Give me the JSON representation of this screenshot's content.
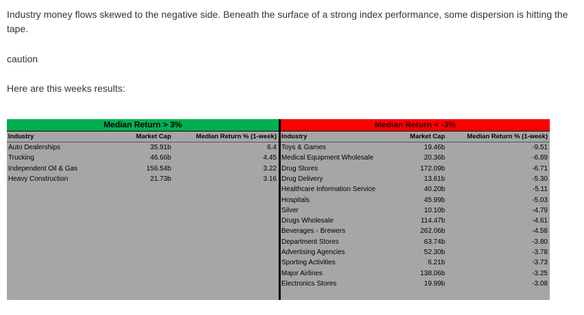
{
  "paragraphs": {
    "intro": "Industry money flows skewed to the negative side.  Beneath the surface of a strong index performance, some dispersion is hitting the tape.",
    "caution": "caution",
    "results_intro": "Here are this weeks results:"
  },
  "table": {
    "colors": {
      "positive_banner": "#00b050",
      "negative_banner": "#ff0000",
      "body": "#a6a6a6",
      "divider": "#000000"
    },
    "positive": {
      "banner": "Median Return > 3%",
      "headers": {
        "industry": "Industry",
        "market_cap": "Market Cap",
        "median_return": "Median Return % (1-week)"
      },
      "rows": [
        {
          "industry": "Auto Dealerships",
          "market_cap": "35.91b",
          "median_return": "6.4"
        },
        {
          "industry": "Trucking",
          "market_cap": "46.66b",
          "median_return": "4.45"
        },
        {
          "industry": "Independent Oil & Gas",
          "market_cap": "156.54b",
          "median_return": "3.22"
        },
        {
          "industry": "Heavy Construction",
          "market_cap": "21.73b",
          "median_return": "3.16"
        }
      ]
    },
    "negative": {
      "banner": "Median Return < -3%",
      "headers": {
        "industry": "Industry",
        "market_cap": "Market Cap",
        "median_return": "Median Return % (1-week)"
      },
      "rows": [
        {
          "industry": "Toys & Games",
          "market_cap": "19.46b",
          "median_return": "-9.51"
        },
        {
          "industry": "Medical Equipment Wholesale",
          "market_cap": "20.36b",
          "median_return": "-6.89"
        },
        {
          "industry": "Drug Stores",
          "market_cap": "172.09b",
          "median_return": "-6.71"
        },
        {
          "industry": "Drug Delivery",
          "market_cap": "13.61b",
          "median_return": "-5.30"
        },
        {
          "industry": "Healthcare Information Service",
          "market_cap": "40.20b",
          "median_return": "-5.11"
        },
        {
          "industry": "Hospitals",
          "market_cap": "45.99b",
          "median_return": "-5.03"
        },
        {
          "industry": "Silver",
          "market_cap": "10.10b",
          "median_return": "-4.79"
        },
        {
          "industry": "Drugs Wholesale",
          "market_cap": "114.47b",
          "median_return": "-4.61"
        },
        {
          "industry": "Beverages - Brewers",
          "market_cap": "262.06b",
          "median_return": "-4.58"
        },
        {
          "industry": "Department Stores",
          "market_cap": "63.74b",
          "median_return": "-3.80"
        },
        {
          "industry": "Advertising Agencies",
          "market_cap": "52.30b",
          "median_return": "-3.78"
        },
        {
          "industry": "Sporting Activities",
          "market_cap": "6.21b",
          "median_return": "-3.73"
        },
        {
          "industry": "Major Airlines",
          "market_cap": "138.06b",
          "median_return": "-3.25"
        },
        {
          "industry": "Electronics Stores",
          "market_cap": "19.99b",
          "median_return": "-3.08"
        }
      ]
    }
  }
}
